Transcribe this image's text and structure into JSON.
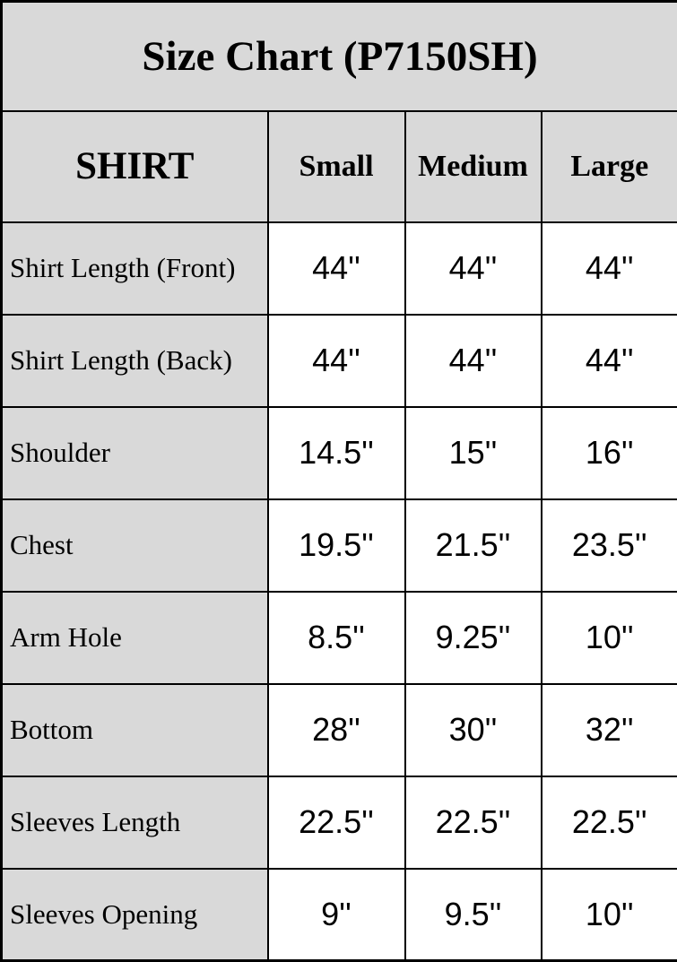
{
  "colors": {
    "cell_gray": "#d9d9d9",
    "cell_white": "#ffffff",
    "border": "#000000",
    "text": "#000000"
  },
  "title": "Size Chart (P7150SH)",
  "table": {
    "header": {
      "label": "SHIRT",
      "sizes": [
        "Small",
        "Medium",
        "Large"
      ]
    },
    "rows": [
      {
        "label": "Shirt Length (Front)",
        "values": [
          "44''",
          "44''",
          "44''"
        ]
      },
      {
        "label": "Shirt Length (Back)",
        "values": [
          "44''",
          "44''",
          "44''"
        ]
      },
      {
        "label": "Shoulder",
        "values": [
          "14.5''",
          "15''",
          "16''"
        ]
      },
      {
        "label": "Chest",
        "values": [
          "19.5''",
          "21.5''",
          "23.5''"
        ]
      },
      {
        "label": "Arm Hole",
        "values": [
          "8.5''",
          "9.25''",
          "10''"
        ]
      },
      {
        "label": "Bottom",
        "values": [
          "28''",
          "30''",
          "32''"
        ]
      },
      {
        "label": "Sleeves Length",
        "values": [
          "22.5''",
          "22.5''",
          "22.5''"
        ]
      },
      {
        "label": "Sleeves Opening",
        "values": [
          "9''",
          "9.5''",
          "10''"
        ]
      }
    ]
  },
  "chart_data": {
    "type": "table",
    "title": "Size Chart (P7150SH)",
    "columns": [
      "SHIRT",
      "Small",
      "Medium",
      "Large"
    ],
    "rows": [
      [
        "Shirt Length (Front)",
        "44''",
        "44''",
        "44''"
      ],
      [
        "Shirt Length (Back)",
        "44''",
        "44''",
        "44''"
      ],
      [
        "Shoulder",
        "14.5''",
        "15''",
        "16''"
      ],
      [
        "Chest",
        "19.5''",
        "21.5''",
        "23.5''"
      ],
      [
        "Arm Hole",
        "8.5''",
        "9.25''",
        "10''"
      ],
      [
        "Bottom",
        "28''",
        "30''",
        "32''"
      ],
      [
        "Sleeves Length",
        "22.5''",
        "22.5''",
        "22.5''"
      ],
      [
        "Sleeves Opening",
        "9''",
        "9.5''",
        "10''"
      ]
    ],
    "layout": {
      "label_column_shaded": true,
      "value_cells_white": true,
      "grid": true
    }
  }
}
